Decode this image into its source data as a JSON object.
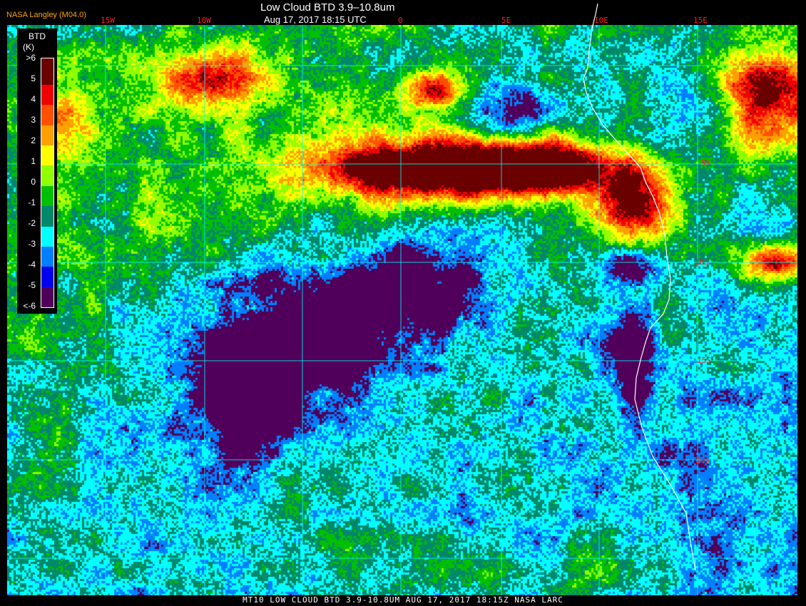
{
  "header": {
    "title": "Low Cloud BTD 3.9–10.8um",
    "subtitle": "Aug 17, 2017 18:15 UTC",
    "agency": "NASA Langley (M04.0)"
  },
  "map": {
    "longitude_labels": [
      "15W",
      "10W",
      "0",
      "5E",
      "10E",
      "15E"
    ],
    "latitude_labels": [
      "5S",
      "10S",
      "15S",
      "20S"
    ],
    "gridline_color": "#00ffff",
    "label_color": "#ff2020",
    "coastline_color": "#ffffff"
  },
  "colorbar": {
    "title": "BTD",
    "units": "(K)",
    "ticks": [
      ">6",
      "5",
      "4",
      "3",
      "2",
      "1",
      "0",
      "-1",
      "-2",
      "-3",
      "-4",
      "-5",
      "<-6"
    ],
    "colors": [
      "#6a0000",
      "#f00000",
      "#ff5000",
      "#ffa000",
      "#ffff00",
      "#90ff00",
      "#00c000",
      "#00886a",
      "#00ffff",
      "#0080ff",
      "#0000f0",
      "#50005a"
    ]
  },
  "footer": {
    "caption": "MT10  LOW CLOUD BTD 3.9-10.8UM   AUG 17, 2017 18:15Z   NASA LARC"
  }
}
